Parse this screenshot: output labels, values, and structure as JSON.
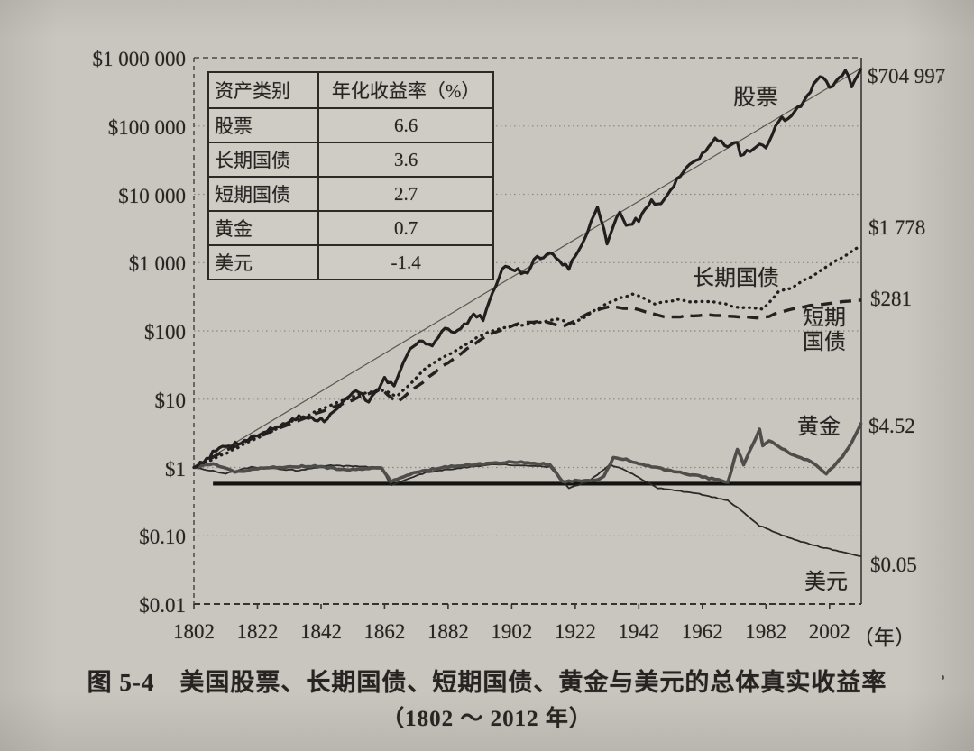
{
  "figure": {
    "caption_line1": "图 5-4　美国股票、长期国债、短期国债、黄金与美元的总体真实收益率",
    "caption_line2": "（1802 ～ 2012 年）"
  },
  "axes": {
    "y_tick_labels": [
      "$1 000 000",
      "$100 000",
      "$10 000",
      "$1 000",
      "$100",
      "$10",
      "$1",
      "$0.10",
      "$0.01"
    ],
    "y_tick_values": [
      1000000,
      100000,
      10000,
      1000,
      100,
      10,
      1,
      0.1,
      0.01
    ],
    "x_tick_labels": [
      "1802",
      "1822",
      "1842",
      "1862",
      "1882",
      "1902",
      "1922",
      "1942",
      "1962",
      "1982",
      "2002"
    ],
    "x_tick_years": [
      1802,
      1822,
      1842,
      1862,
      1882,
      1902,
      1922,
      1942,
      1962,
      1982,
      2002
    ],
    "x_unit_label": "（年）"
  },
  "inset_table": {
    "headers": [
      "资产类别",
      "年化收益率（%）"
    ],
    "rows": [
      {
        "asset": "股票",
        "value": "6.6"
      },
      {
        "asset": "长期国债",
        "value": "3.6"
      },
      {
        "asset": "短期国债",
        "value": "2.7"
      },
      {
        "asset": "黄金",
        "value": "0.7"
      },
      {
        "asset": "美元",
        "value": "-1.4"
      }
    ]
  },
  "chart_data": {
    "type": "line",
    "title": "美国股票、长期国债、短期国债、黄金与美元的总体真实收益率",
    "period": "1802～2012年",
    "y_scale": "log",
    "x_range": [
      1802,
      2012
    ],
    "y_range": [
      0.01,
      1000000
    ],
    "grid": true,
    "series": [
      {
        "id": "stocks",
        "label": "股票",
        "end_label": "$704 997",
        "final_value": 704997,
        "annualized_real_return_pct": 6.6,
        "line_style": "solid-thick",
        "points": [
          [
            1802,
            1
          ],
          [
            1810,
            1.9
          ],
          [
            1817,
            2.4
          ],
          [
            1825,
            3.4
          ],
          [
            1835,
            5.5
          ],
          [
            1843,
            4.8
          ],
          [
            1850,
            10
          ],
          [
            1853,
            14
          ],
          [
            1857,
            9
          ],
          [
            1862,
            20
          ],
          [
            1865,
            15
          ],
          [
            1870,
            55
          ],
          [
            1873,
            75
          ],
          [
            1877,
            60
          ],
          [
            1881,
            110
          ],
          [
            1884,
            90
          ],
          [
            1890,
            170
          ],
          [
            1893,
            150
          ],
          [
            1897,
            500
          ],
          [
            1900,
            950
          ],
          [
            1903,
            800
          ],
          [
            1907,
            700
          ],
          [
            1909,
            1100
          ],
          [
            1915,
            1400
          ],
          [
            1917,
            1000
          ],
          [
            1920,
            850
          ],
          [
            1924,
            1700
          ],
          [
            1929,
            6700
          ],
          [
            1932,
            2000
          ],
          [
            1936,
            5500
          ],
          [
            1938,
            3600
          ],
          [
            1942,
            4300
          ],
          [
            1946,
            8000
          ],
          [
            1949,
            7000
          ],
          [
            1956,
            22000
          ],
          [
            1961,
            33000
          ],
          [
            1966,
            70000
          ],
          [
            1970,
            48000
          ],
          [
            1973,
            62000
          ],
          [
            1974,
            36000
          ],
          [
            1980,
            55000
          ],
          [
            1982,
            48000
          ],
          [
            1987,
            145000
          ],
          [
            1988,
            115000
          ],
          [
            1994,
            225000
          ],
          [
            1998,
            480000
          ],
          [
            2000,
            540000
          ],
          [
            2002,
            350000
          ],
          [
            2007,
            640000
          ],
          [
            2009,
            395000
          ],
          [
            2012,
            704997
          ]
        ]
      },
      {
        "id": "long_bond",
        "label": "长期国债",
        "end_label": "$1 778",
        "final_value": 1778,
        "annualized_real_return_pct": 3.6,
        "line_style": "dotted",
        "points": [
          [
            1802,
            1
          ],
          [
            1812,
            1.6
          ],
          [
            1822,
            2.7
          ],
          [
            1832,
            4.5
          ],
          [
            1842,
            7
          ],
          [
            1852,
            11
          ],
          [
            1861,
            14
          ],
          [
            1866,
            11
          ],
          [
            1875,
            28
          ],
          [
            1885,
            55
          ],
          [
            1895,
            100
          ],
          [
            1903,
            120
          ],
          [
            1910,
            130
          ],
          [
            1917,
            150
          ],
          [
            1921,
            120
          ],
          [
            1928,
            200
          ],
          [
            1932,
            250
          ],
          [
            1940,
            350
          ],
          [
            1947,
            250
          ],
          [
            1954,
            290
          ],
          [
            1960,
            260
          ],
          [
            1965,
            270
          ],
          [
            1972,
            230
          ],
          [
            1981,
            205
          ],
          [
            1986,
            380
          ],
          [
            1990,
            420
          ],
          [
            2000,
            800
          ],
          [
            2008,
            1350
          ],
          [
            2012,
            1778
          ]
        ]
      },
      {
        "id": "short_bond",
        "label": "短期国债",
        "end_label": "$281",
        "final_value": 281,
        "annualized_real_return_pct": 2.7,
        "line_style": "dashed",
        "points": [
          [
            1802,
            1
          ],
          [
            1812,
            1.8
          ],
          [
            1825,
            3.2
          ],
          [
            1840,
            6
          ],
          [
            1855,
            11
          ],
          [
            1861,
            14
          ],
          [
            1866,
            9
          ],
          [
            1880,
            30
          ],
          [
            1895,
            90
          ],
          [
            1905,
            130
          ],
          [
            1912,
            140
          ],
          [
            1918,
            115
          ],
          [
            1926,
            180
          ],
          [
            1933,
            230
          ],
          [
            1940,
            210
          ],
          [
            1951,
            160
          ],
          [
            1962,
            170
          ],
          [
            1970,
            165
          ],
          [
            1981,
            155
          ],
          [
            1990,
            210
          ],
          [
            2000,
            250
          ],
          [
            2012,
            281
          ]
        ]
      },
      {
        "id": "gold",
        "label": "黄金",
        "end_label": "$4.52",
        "final_value": 4.52,
        "annualized_real_return_pct": 0.7,
        "line_style": "solid-gray-thick",
        "points": [
          [
            1802,
            1
          ],
          [
            1808,
            1.15
          ],
          [
            1815,
            0.85
          ],
          [
            1825,
            1.0
          ],
          [
            1840,
            1.05
          ],
          [
            1850,
            0.92
          ],
          [
            1861,
            1.0
          ],
          [
            1864,
            0.63
          ],
          [
            1872,
            0.85
          ],
          [
            1880,
            1.0
          ],
          [
            1895,
            1.15
          ],
          [
            1905,
            1.2
          ],
          [
            1914,
            1.1
          ],
          [
            1918,
            0.62
          ],
          [
            1929,
            0.66
          ],
          [
            1931,
            0.75
          ],
          [
            1934,
            1.4
          ],
          [
            1938,
            1.3
          ],
          [
            1945,
            1.05
          ],
          [
            1955,
            0.85
          ],
          [
            1965,
            0.68
          ],
          [
            1970,
            0.6
          ],
          [
            1973,
            1.85
          ],
          [
            1975,
            1.1
          ],
          [
            1980,
            3.6
          ],
          [
            1981,
            2.1
          ],
          [
            1983,
            2.5
          ],
          [
            1990,
            1.55
          ],
          [
            1996,
            1.25
          ],
          [
            2001,
            0.82
          ],
          [
            2006,
            1.4
          ],
          [
            2009,
            2.3
          ],
          [
            2012,
            4.52
          ]
        ]
      },
      {
        "id": "dollar",
        "label": "美元",
        "end_label": "$0.05",
        "final_value": 0.05,
        "annualized_real_return_pct": -1.4,
        "line_style": "solid-thin",
        "points": [
          [
            1802,
            1
          ],
          [
            1812,
            0.82
          ],
          [
            1820,
            1.02
          ],
          [
            1835,
            0.9
          ],
          [
            1845,
            1.08
          ],
          [
            1861,
            1.0
          ],
          [
            1864,
            0.55
          ],
          [
            1875,
            0.85
          ],
          [
            1896,
            1.12
          ],
          [
            1914,
            1.02
          ],
          [
            1920,
            0.5
          ],
          [
            1926,
            0.62
          ],
          [
            1933,
            1.1
          ],
          [
            1937,
            0.95
          ],
          [
            1948,
            0.5
          ],
          [
            1960,
            0.42
          ],
          [
            1970,
            0.33
          ],
          [
            1975,
            0.22
          ],
          [
            1980,
            0.14
          ],
          [
            1990,
            0.09
          ],
          [
            2000,
            0.067
          ],
          [
            2012,
            0.05
          ]
        ]
      }
    ],
    "trend_line": {
      "series": "股票",
      "from": [
        1802,
        1
      ],
      "to": [
        2012,
        704997
      ]
    },
    "reference_line": {
      "value": 0.58,
      "from_year": 1808,
      "to_year": 2012
    }
  },
  "colors": {
    "paper": "#ccc9c3",
    "ink": "#262420",
    "grid": "#8a867e",
    "stocks_line": "#201f1d",
    "gold_line": "#4f4d49"
  }
}
